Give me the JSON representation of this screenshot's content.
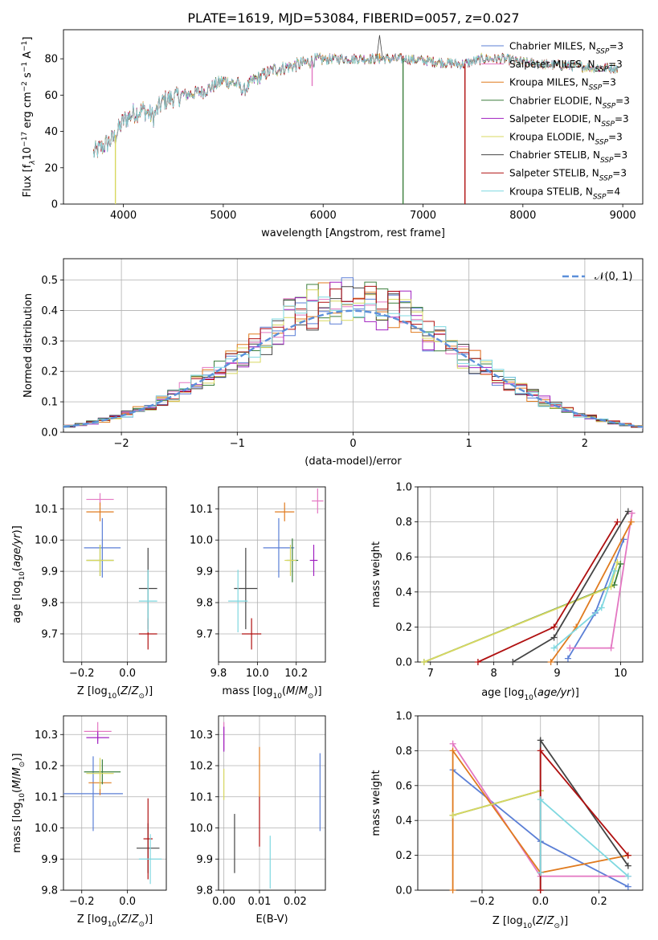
{
  "figure_title": "PLATE=1619, MJD=53084, FIBERID=0057, z=0.027",
  "colors": {
    "series": [
      "#5b7fd6",
      "#e377c2",
      "#e07b1f",
      "#3c7f3c",
      "#a020c0",
      "#d8d860",
      "#444444",
      "#b01010",
      "#7fd8e0"
    ],
    "gauss": "#5b8fd9",
    "grid": "#b0b0b0"
  },
  "chart_data": [
    {
      "id": "spectrum",
      "type": "line",
      "title": "PLATE=1619, MJD=53084, FIBERID=0057, z=0.027",
      "xlabel": "wavelength [Angstrom, rest frame]",
      "ylabel_parts": [
        "Flux [f",
        "λ",
        "10",
        "−17",
        " erg cm",
        "−2",
        " s",
        "−1",
        " A",
        "−1",
        "]"
      ],
      "xlim": [
        3400,
        9200
      ],
      "ylim": [
        0,
        96
      ],
      "xticks": [
        4000,
        5000,
        6000,
        7000,
        8000,
        9000
      ],
      "yticks": [
        0,
        20,
        40,
        60,
        80
      ],
      "grid": false,
      "legend_loc": "upper right",
      "legend": [
        {
          "base": "Chabrier MILES, N",
          "sub": "SSP",
          "suffix": "=3"
        },
        {
          "base": "Salpeter MILES, N",
          "sub": "SSP",
          "suffix": "=3"
        },
        {
          "base": "Kroupa MILES, N",
          "sub": "SSP",
          "suffix": "=3"
        },
        {
          "base": "Chabrier ELODIE, N",
          "sub": "SSP",
          "suffix": "=3"
        },
        {
          "base": "Salpeter ELODIE, N",
          "sub": "SSP",
          "suffix": "=3"
        },
        {
          "base": "Kroupa ELODIE, N",
          "sub": "SSP",
          "suffix": "=3"
        },
        {
          "base": "Chabrier STELIB, N",
          "sub": "SSP",
          "suffix": "=3"
        },
        {
          "base": "Salpeter STELIB, N",
          "sub": "SSP",
          "suffix": "=3"
        },
        {
          "base": "Kroupa STELIB, N",
          "sub": "SSP",
          "suffix": "=4"
        }
      ],
      "continuum": [
        [
          3700,
          28
        ],
        [
          3800,
          32
        ],
        [
          3900,
          36
        ],
        [
          4000,
          46
        ],
        [
          4100,
          50
        ],
        [
          4200,
          52
        ],
        [
          4300,
          48
        ],
        [
          4400,
          57
        ],
        [
          4600,
          60
        ],
        [
          4800,
          62
        ],
        [
          5000,
          68
        ],
        [
          5150,
          66
        ],
        [
          5200,
          62
        ],
        [
          5300,
          68
        ],
        [
          5500,
          74
        ],
        [
          5700,
          76
        ],
        [
          5900,
          79
        ],
        [
          6100,
          80
        ],
        [
          6300,
          80
        ],
        [
          6500,
          80
        ],
        [
          6600,
          80
        ],
        [
          6800,
          80
        ],
        [
          7000,
          79
        ],
        [
          7200,
          78
        ],
        [
          7400,
          77
        ],
        [
          7600,
          80
        ],
        [
          7800,
          80
        ],
        [
          8000,
          78
        ],
        [
          8200,
          77
        ],
        [
          8500,
          76
        ],
        [
          8800,
          75
        ],
        [
          8950,
          75
        ]
      ],
      "dips": [
        {
          "x": 3920,
          "y": 0,
          "series": 5
        },
        {
          "x": 6800,
          "y": 0,
          "series": 3
        },
        {
          "x": 7420,
          "y": 0,
          "series": 7
        },
        {
          "x": 5890,
          "y": 65,
          "series": 1
        },
        {
          "x": 6565,
          "y": 83,
          "series": 2
        }
      ],
      "peak": {
        "x": 6565,
        "y": 93,
        "series": 6
      }
    },
    {
      "id": "residuals",
      "type": "step",
      "xlabel": "(data-model)/error",
      "ylabel": "Normed distribution",
      "xlim": [
        -2.5,
        2.5
      ],
      "ylim": [
        0,
        0.57
      ],
      "xticks": [
        -2,
        -1,
        0,
        1,
        2
      ],
      "yticks": [
        0,
        0.1,
        0.2,
        0.3,
        0.4,
        0.5
      ],
      "grid": true,
      "bin_width": 0.1,
      "gaussian": {
        "mean": 0,
        "sigma": 1,
        "label": "𝒩(0, 1)"
      },
      "legend_loc": "upper right"
    },
    {
      "id": "age_vs_Z",
      "type": "errorbar",
      "xlabel_prefix": "Z [log",
      "xlabel_sub": "10",
      "xlabel_suffix": "(Z/Z",
      "ylabel": "age  [log10(age/yr)]",
      "xlim": [
        -0.28,
        0.17
      ],
      "ylim": [
        9.61,
        10.17
      ],
      "xticks": [
        -0.2,
        0.0
      ],
      "yticks": [
        9.7,
        9.8,
        9.9,
        10.0,
        10.1
      ],
      "grid": true,
      "points": [
        {
          "x": -0.11,
          "xerr": 0.08,
          "y": 9.975,
          "yerr": 0.095,
          "series": 0
        },
        {
          "x": -0.12,
          "xerr": 0.06,
          "y": 10.13,
          "yerr": 0.02,
          "series": 1
        },
        {
          "x": -0.12,
          "xerr": 0.06,
          "y": 10.09,
          "yerr": 0.03,
          "series": 2
        },
        {
          "x": -0.12,
          "xerr": 0.06,
          "y": 9.935,
          "yerr": 0.05,
          "series": 3
        },
        {
          "x": -0.12,
          "xerr": 0.06,
          "y": 9.935,
          "yerr": 0.05,
          "series": 5
        },
        {
          "x": 0.09,
          "xerr": 0.04,
          "y": 9.845,
          "yerr": 0.13,
          "series": 6
        },
        {
          "x": 0.09,
          "xerr": 0.04,
          "y": 9.7,
          "yerr": 0.05,
          "series": 7
        },
        {
          "x": 0.09,
          "xerr": 0.04,
          "y": 9.805,
          "yerr": 0.1,
          "series": 8
        }
      ]
    },
    {
      "id": "age_vs_mass",
      "type": "errorbar",
      "xlabel_prefix": "mass [log",
      "xlabel_sub": "10",
      "xlabel_suffix": "(M/M",
      "ylabel": "",
      "xlim": [
        9.8,
        10.35
      ],
      "ylim": [
        9.61,
        10.17
      ],
      "xticks": [
        9.8,
        10.0,
        10.2
      ],
      "yticks": [
        9.7,
        9.8,
        9.9,
        10.0,
        10.1
      ],
      "grid": true,
      "points": [
        {
          "x": 10.11,
          "xerr": 0.08,
          "y": 9.975,
          "yerr": 0.095,
          "series": 0
        },
        {
          "x": 10.31,
          "xerr": 0.03,
          "y": 10.125,
          "yerr": 0.04,
          "series": 1
        },
        {
          "x": 10.14,
          "xerr": 0.05,
          "y": 10.09,
          "yerr": 0.03,
          "series": 2
        },
        {
          "x": 10.18,
          "xerr": 0.03,
          "y": 9.935,
          "yerr": 0.07,
          "series": 3
        },
        {
          "x": 10.29,
          "xerr": 0.02,
          "y": 9.935,
          "yerr": 0.05,
          "series": 4
        },
        {
          "x": 10.17,
          "xerr": 0.03,
          "y": 9.935,
          "yerr": 0.05,
          "series": 5
        },
        {
          "x": 9.94,
          "xerr": 0.06,
          "y": 9.845,
          "yerr": 0.13,
          "series": 6
        },
        {
          "x": 9.97,
          "xerr": 0.05,
          "y": 9.7,
          "yerr": 0.05,
          "series": 7
        },
        {
          "x": 9.9,
          "xerr": 0.05,
          "y": 9.805,
          "yerr": 0.1,
          "series": 8
        }
      ]
    },
    {
      "id": "weight_vs_age",
      "type": "line",
      "xlabel": "age  [log10(age/yr)]",
      "ylabel": "mass weight",
      "xlim": [
        6.8,
        10.35
      ],
      "ylim": [
        0,
        1
      ],
      "xticks": [
        7,
        8,
        9,
        10
      ],
      "yticks": [
        0,
        0.2,
        0.4,
        0.6,
        0.8,
        1.0
      ],
      "grid": true,
      "series": [
        {
          "color_index": 0,
          "points": [
            [
              9.17,
              0.02
            ],
            [
              9.6,
              0.28
            ],
            [
              10.05,
              0.7
            ]
          ]
        },
        {
          "color_index": 1,
          "points": [
            [
              9.2,
              0.08
            ],
            [
              9.85,
              0.08
            ],
            [
              10.18,
              0.85
            ]
          ]
        },
        {
          "color_index": 2,
          "points": [
            [
              8.9,
              0.0
            ],
            [
              9.3,
              0.2
            ],
            [
              10.17,
              0.8
            ]
          ]
        },
        {
          "color_index": 3,
          "points": [
            [
              6.9,
              0.0
            ],
            [
              9.9,
              0.44
            ],
            [
              10.0,
              0.56
            ]
          ]
        },
        {
          "color_index": 5,
          "points": [
            [
              6.9,
              0.0
            ],
            [
              9.85,
              0.43
            ],
            [
              9.95,
              0.57
            ]
          ]
        },
        {
          "color_index": 6,
          "points": [
            [
              8.3,
              0.0
            ],
            [
              8.95,
              0.14
            ],
            [
              10.12,
              0.86
            ]
          ]
        },
        {
          "color_index": 7,
          "points": [
            [
              7.75,
              0.0
            ],
            [
              8.95,
              0.2
            ],
            [
              9.95,
              0.8
            ]
          ]
        },
        {
          "color_index": 8,
          "points": [
            [
              8.95,
              0.08
            ],
            [
              9.7,
              0.31
            ],
            [
              9.9,
              0.52
            ]
          ]
        }
      ]
    },
    {
      "id": "mass_vs_Z",
      "type": "errorbar",
      "xlabel_prefix": "Z [log",
      "xlabel_sub": "10",
      "xlabel_suffix": "(Z/Z",
      "ylabel": "mass [log10(M/M☉)]",
      "xlim": [
        -0.28,
        0.17
      ],
      "ylim": [
        9.8,
        10.36
      ],
      "xticks": [
        -0.2,
        0.0
      ],
      "yticks": [
        9.8,
        9.9,
        10.0,
        10.1,
        10.2,
        10.3
      ],
      "grid": true,
      "points": [
        {
          "x": -0.15,
          "xerr": 0.13,
          "y": 10.11,
          "yerr": 0.12,
          "series": 0
        },
        {
          "x": -0.13,
          "xerr": 0.06,
          "y": 10.31,
          "yerr": 0.03,
          "series": 1
        },
        {
          "x": -0.12,
          "xerr": 0.05,
          "y": 10.145,
          "yerr": 0.04,
          "series": 2
        },
        {
          "x": -0.11,
          "xerr": 0.08,
          "y": 10.18,
          "yerr": 0.04,
          "series": 3
        },
        {
          "x": -0.13,
          "xerr": 0.05,
          "y": 10.29,
          "yerr": 0.02,
          "series": 4
        },
        {
          "x": -0.12,
          "xerr": 0.06,
          "y": 10.175,
          "yerr": 0.05,
          "series": 5
        },
        {
          "x": 0.09,
          "xerr": 0.05,
          "y": 9.935,
          "yerr": 0.08,
          "series": 6
        },
        {
          "x": 0.09,
          "xerr": 0.02,
          "y": 9.965,
          "yerr": 0.13,
          "series": 7
        },
        {
          "x": 0.1,
          "xerr": 0.05,
          "y": 9.9,
          "yerr": 0.08,
          "series": 8
        }
      ]
    },
    {
      "id": "mass_vs_EBV",
      "type": "errorbar",
      "xlabel": "E(B-V)",
      "ylabel": "",
      "xlim": [
        -0.0015,
        0.0285
      ],
      "ylim": [
        9.8,
        10.36
      ],
      "xticks": [
        0.0,
        0.01,
        0.02
      ],
      "yticks": [
        9.8,
        9.9,
        10.0,
        10.1,
        10.2,
        10.3
      ],
      "grid": true,
      "points": [
        {
          "x": 0.027,
          "xerr": 0,
          "y": 10.115,
          "yerr": 0.125,
          "series": 0
        },
        {
          "x": 0.0,
          "xerr": 0,
          "y": 10.295,
          "yerr": 0.045,
          "series": 1
        },
        {
          "x": 0.01,
          "xerr": 0,
          "y": 10.18,
          "yerr": 0.08,
          "series": 2
        },
        {
          "x": 0.0,
          "xerr": 0,
          "y": 10.285,
          "yerr": 0.04,
          "series": 4
        },
        {
          "x": 0.0,
          "xerr": 0,
          "y": 10.14,
          "yerr": 0.05,
          "series": 5
        },
        {
          "x": 0.003,
          "xerr": 0,
          "y": 9.95,
          "yerr": 0.095,
          "series": 6
        },
        {
          "x": 0.01,
          "xerr": 0,
          "y": 10.02,
          "yerr": 0.08,
          "series": 7
        },
        {
          "x": 0.013,
          "xerr": 0,
          "y": 9.89,
          "yerr": 0.085,
          "series": 8
        }
      ]
    },
    {
      "id": "weight_vs_Z",
      "type": "line",
      "xlabel_prefix": "Z [log",
      "xlabel_sub": "10",
      "xlabel_suffix": "(Z/Z",
      "ylabel": "mass weight",
      "xlim": [
        -0.42,
        0.35
      ],
      "ylim": [
        0,
        1
      ],
      "xticks": [
        -0.2,
        0.0,
        0.2
      ],
      "yticks": [
        0,
        0.2,
        0.4,
        0.6,
        0.8,
        1.0
      ],
      "grid": true,
      "series": [
        {
          "color_index": 0,
          "points": [
            [
              -0.3,
              0.69
            ],
            [
              0.0,
              0.28
            ],
            [
              0.3,
              0.02
            ]
          ]
        },
        {
          "color_index": 1,
          "points": [
            [
              -0.3,
              0.84
            ],
            [
              0.0,
              0.08
            ],
            [
              0.3,
              0.08
            ]
          ]
        },
        {
          "color_index": 2,
          "points": [
            [
              -0.3,
              0.0
            ],
            [
              -0.3,
              0.8
            ],
            [
              0.0,
              0.1
            ],
            [
              0.3,
              0.2
            ]
          ]
        },
        {
          "color_index": 3,
          "points": [
            [
              -0.3,
              0.43
            ],
            [
              0.0,
              0.57
            ]
          ]
        },
        {
          "color_index": 5,
          "points": [
            [
              -0.3,
              0.43
            ],
            [
              0.0,
              0.57
            ]
          ]
        },
        {
          "color_index": 6,
          "points": [
            [
              0.0,
              0.0
            ],
            [
              0.0,
              0.86
            ],
            [
              0.3,
              0.14
            ]
          ]
        },
        {
          "color_index": 7,
          "points": [
            [
              0.0,
              0.0
            ],
            [
              0.0,
              0.8
            ],
            [
              0.3,
              0.2
            ]
          ]
        },
        {
          "color_index": 8,
          "points": [
            [
              0.0,
              0.1
            ],
            [
              0.0,
              0.52
            ],
            [
              0.3,
              0.08
            ]
          ]
        }
      ]
    }
  ]
}
